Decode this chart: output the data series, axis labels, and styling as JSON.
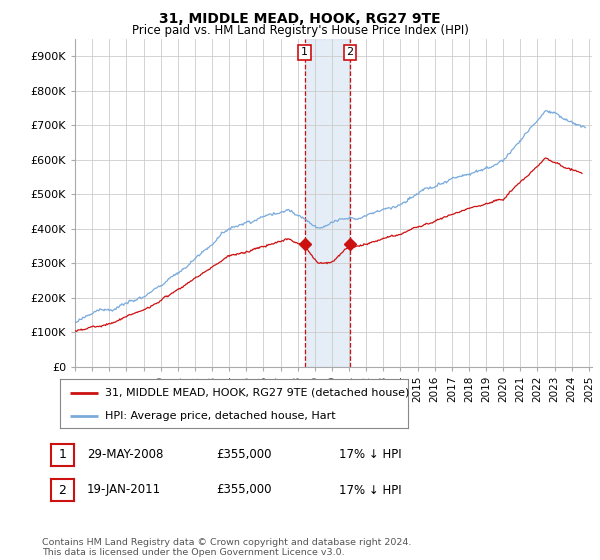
{
  "title": "31, MIDDLE MEAD, HOOK, RG27 9TE",
  "subtitle": "Price paid vs. HM Land Registry's House Price Index (HPI)",
  "ylim": [
    0,
    950000
  ],
  "yticks": [
    0,
    100000,
    200000,
    300000,
    400000,
    500000,
    600000,
    700000,
    800000,
    900000
  ],
  "ytick_labels": [
    "£0",
    "£100K",
    "£200K",
    "£300K",
    "£400K",
    "£500K",
    "£600K",
    "£700K",
    "£800K",
    "£900K"
  ],
  "hpi_color": "#7aabdc",
  "price_color": "#cc1111",
  "sale1_date_num": 2008.41,
  "sale1_price": 355000,
  "sale2_date_num": 2011.05,
  "sale2_price": 355000,
  "shade_color": "#ccddf0",
  "legend_line1": "31, MIDDLE MEAD, HOOK, RG27 9TE (detached house)",
  "legend_line2": "HPI: Average price, detached house, Hart",
  "table_row1": [
    "1",
    "29-MAY-2008",
    "£355,000",
    "17% ↓ HPI"
  ],
  "table_row2": [
    "2",
    "19-JAN-2011",
    "£355,000",
    "17% ↓ HPI"
  ],
  "footnote": "Contains HM Land Registry data © Crown copyright and database right 2024.\nThis data is licensed under the Open Government Licence v3.0.",
  "bg_color": "#ffffff",
  "grid_color": "#cccccc"
}
